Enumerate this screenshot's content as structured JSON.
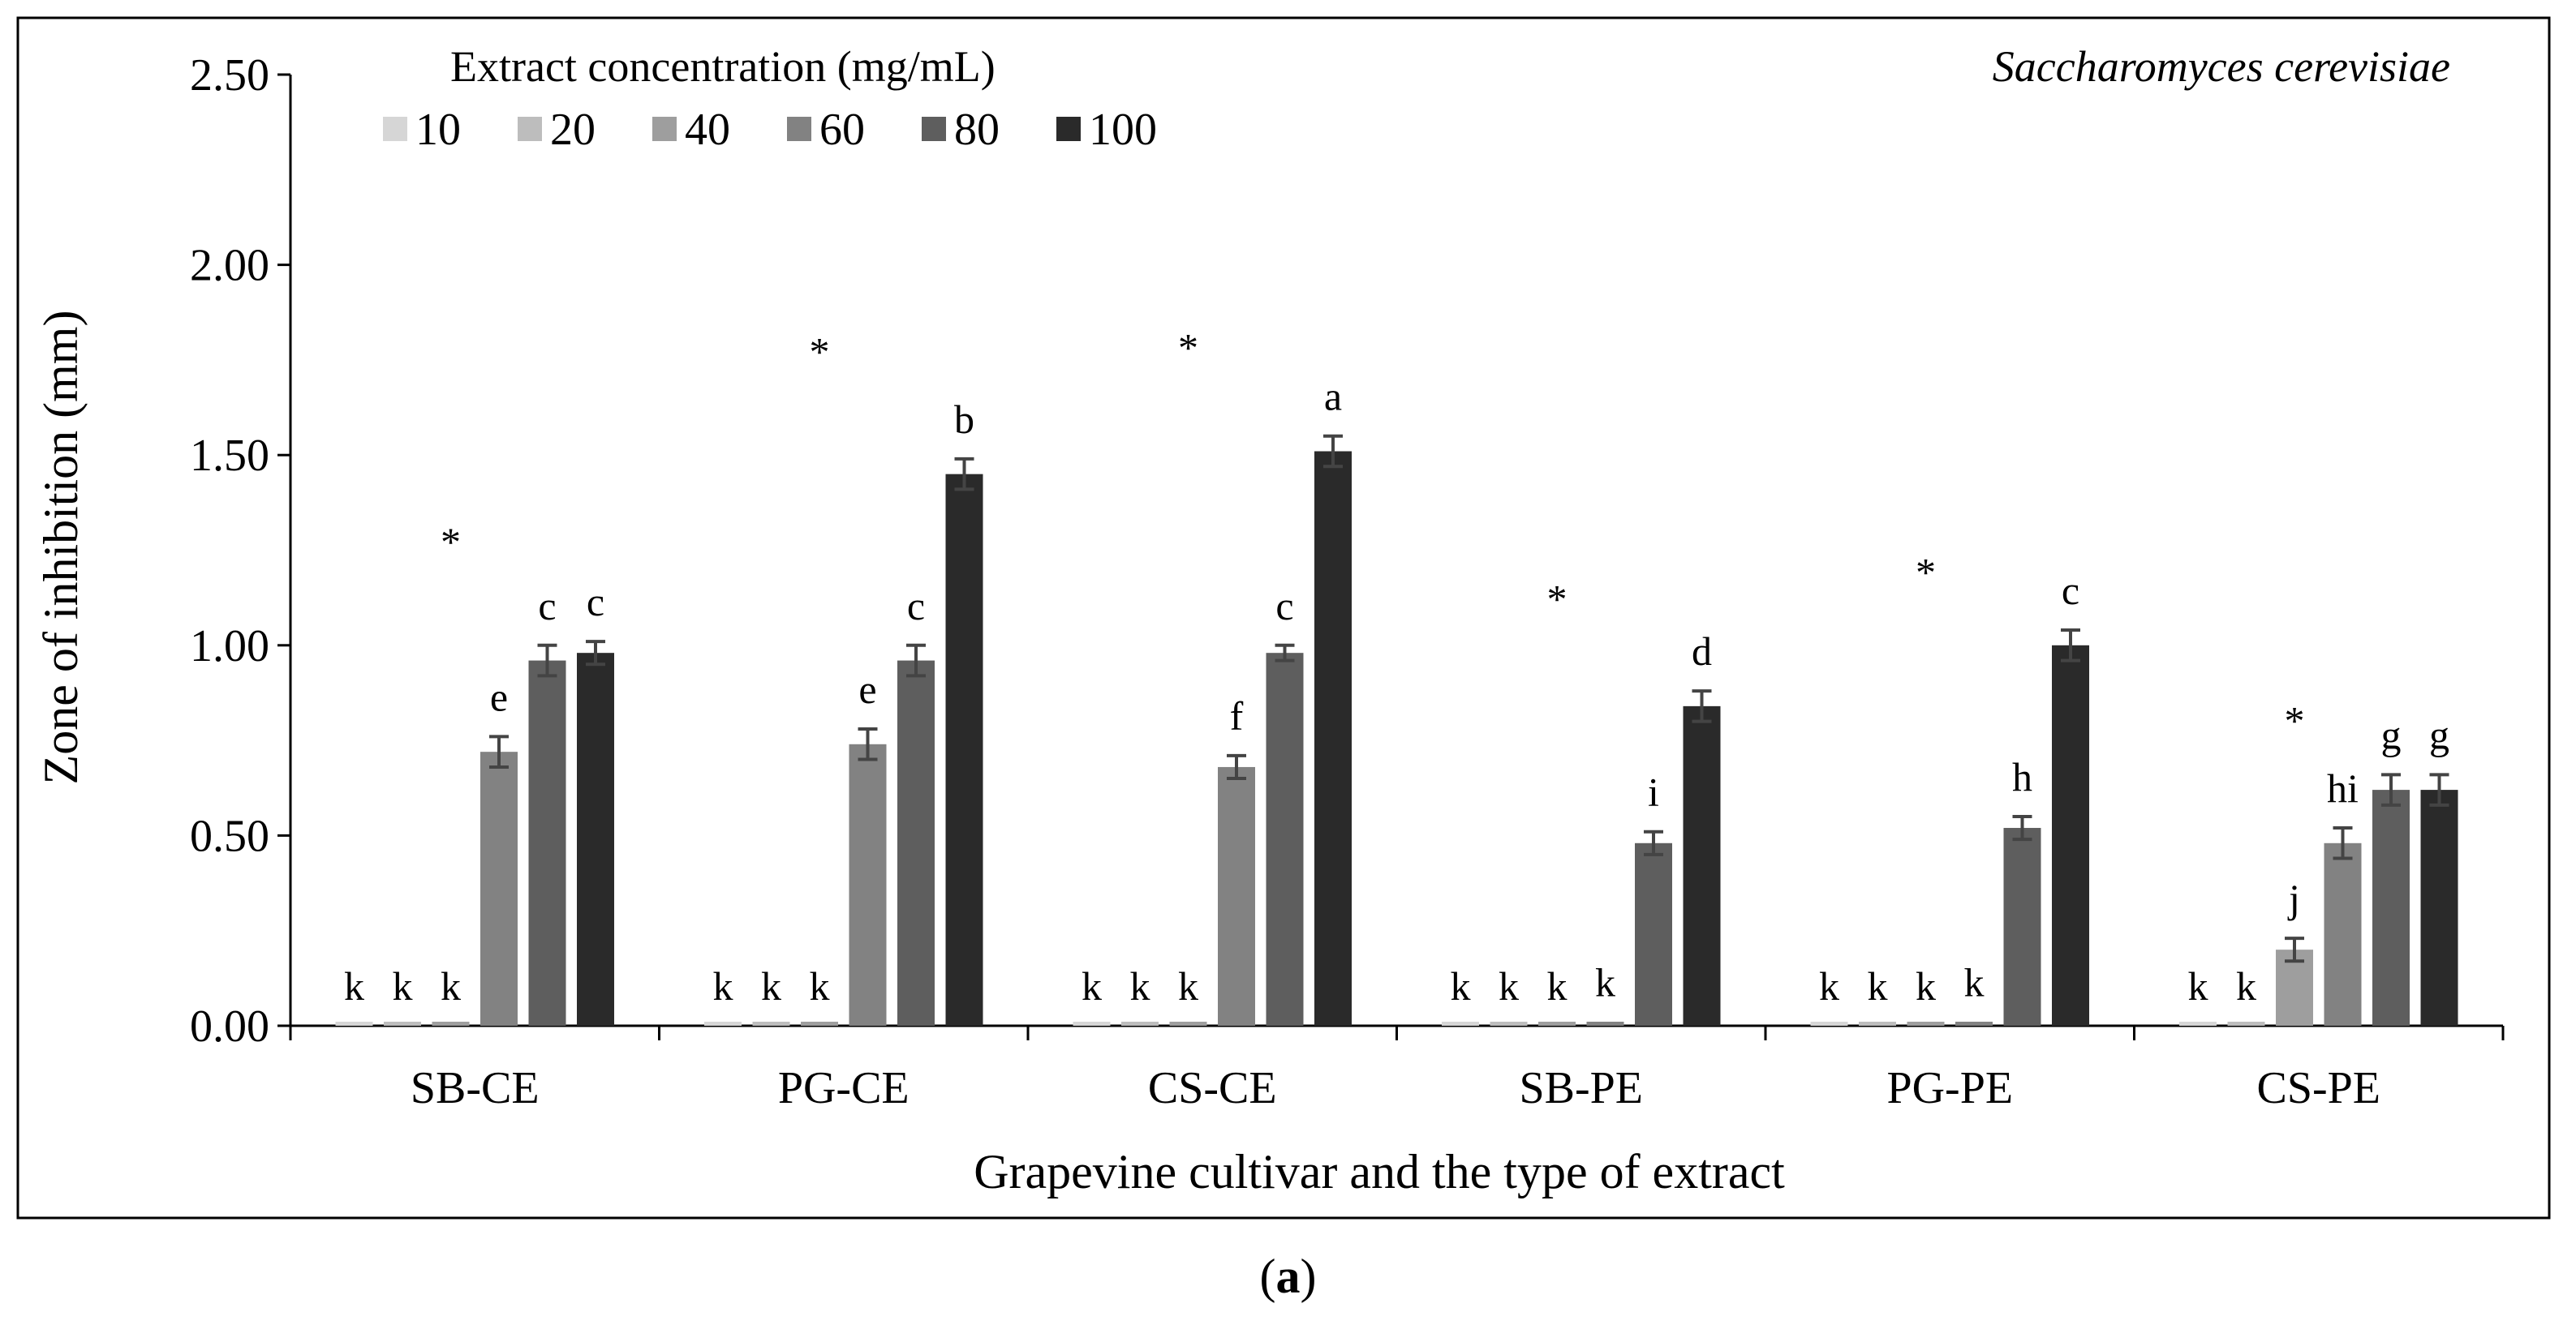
{
  "chart_data": {
    "type": "bar",
    "title": "Saccharomyces cerevisiae",
    "xlabel": "Grapevine cultivar and the type of extract",
    "ylabel": "Zone of inhibition (mm)",
    "ylim": [
      0,
      2.5
    ],
    "yticks": [
      "0.00",
      "0.50",
      "1.00",
      "1.50",
      "2.00",
      "2.50"
    ],
    "categories": [
      "SB-CE",
      "PG-CE",
      "CS-CE",
      "SB-PE",
      "PG-PE",
      "CS-PE"
    ],
    "legend_title": "Extract concentration (mg/mL)",
    "legend_position": "top-left",
    "series": [
      {
        "name": "10",
        "color": "#d6d6d6",
        "values": [
          0,
          0,
          0,
          0,
          0,
          0
        ],
        "errors": [
          0,
          0,
          0,
          0,
          0,
          0
        ],
        "letters": [
          "k",
          "k",
          "k",
          "k",
          "k",
          "k"
        ]
      },
      {
        "name": "20",
        "color": "#bdbdbd",
        "values": [
          0,
          0,
          0,
          0,
          0,
          0
        ],
        "errors": [
          0,
          0,
          0,
          0,
          0,
          0
        ],
        "letters": [
          "k",
          "k",
          "k",
          "k",
          "k",
          "k"
        ]
      },
      {
        "name": "40",
        "color": "#9e9e9e",
        "values": [
          0,
          0,
          0,
          0,
          0,
          0.2
        ],
        "errors": [
          0,
          0,
          0,
          0,
          0,
          0.03
        ],
        "letters": [
          "k",
          "k",
          "k",
          "k",
          "k",
          "j"
        ]
      },
      {
        "name": "60",
        "color": "#828282",
        "values": [
          0.72,
          0.74,
          0.68,
          0.01,
          0.01,
          0.48
        ],
        "errors": [
          0.04,
          0.04,
          0.03,
          0,
          0,
          0.04
        ],
        "letters": [
          "e",
          "e",
          "f",
          "k",
          "k",
          "hi"
        ]
      },
      {
        "name": "80",
        "color": "#5e5e5e",
        "values": [
          0.96,
          0.96,
          0.98,
          0.48,
          0.52,
          0.62
        ],
        "errors": [
          0.04,
          0.04,
          0.02,
          0.03,
          0.03,
          0.04
        ],
        "letters": [
          "c",
          "c",
          "c",
          "i",
          "h",
          "g"
        ]
      },
      {
        "name": "100",
        "color": "#2a2a2a",
        "values": [
          0.98,
          1.45,
          1.51,
          0.84,
          1.0,
          0.62
        ],
        "errors": [
          0.03,
          0.04,
          0.04,
          0.04,
          0.04,
          0.04
        ],
        "letters": [
          "c",
          "b",
          "a",
          "d",
          "c",
          "g"
        ]
      }
    ],
    "asterisk_label": "*",
    "asterisks": [
      1.3,
      1.8,
      1.81,
      1.15,
      1.22,
      0.83
    ]
  },
  "panel_label": "(a)"
}
